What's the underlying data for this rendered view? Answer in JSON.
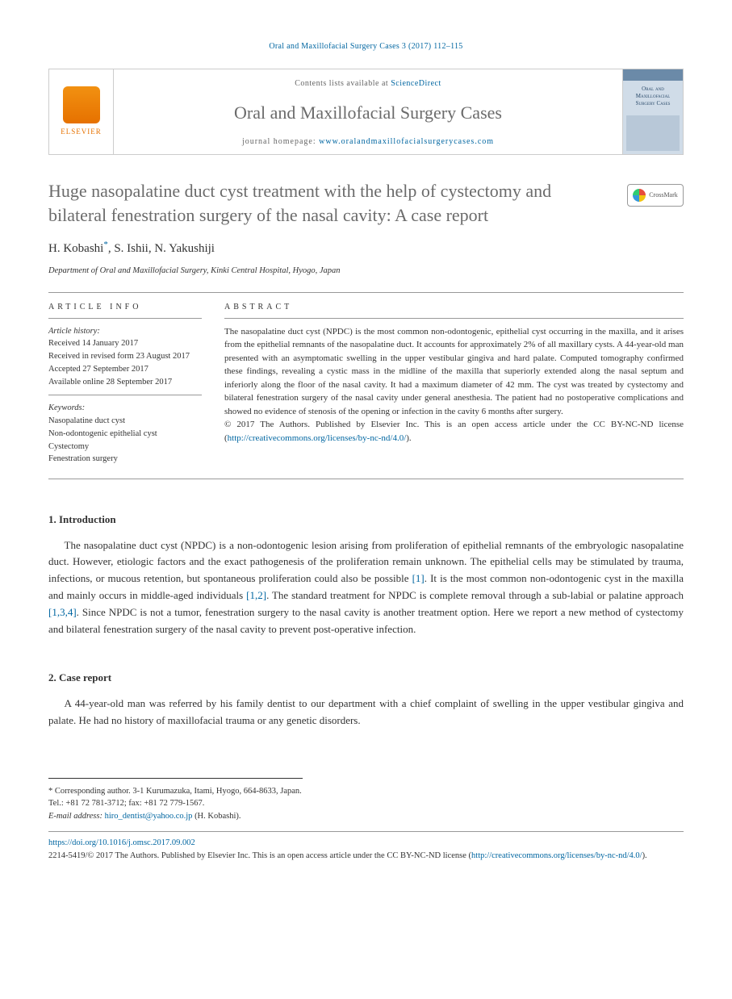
{
  "journal_ref": "Oral and Maxillofacial Surgery Cases 3 (2017) 112–115",
  "header": {
    "elsevier": "ELSEVIER",
    "contents_prefix": "Contents lists available at ",
    "contents_link": "ScienceDirect",
    "journal_title": "Oral and Maxillofacial Surgery Cases",
    "homepage_prefix": "journal homepage: ",
    "homepage_url": "www.oralandmaxillofacialsurgerycases.com",
    "cover_title": "Oral and Maxillofacial Surgery Cases"
  },
  "article": {
    "title": "Huge nasopalatine duct cyst treatment with the help of cystectomy and bilateral fenestration surgery of the nasal cavity: A case report",
    "crossmark": "CrossMark",
    "authors": "H. Kobashi",
    "authors_rest": ", S. Ishii, N. Yakushiji",
    "corr_marker": "*",
    "affiliation": "Department of Oral and Maxillofacial Surgery, Kinki Central Hospital, Hyogo, Japan"
  },
  "info": {
    "label": "ARTICLE INFO",
    "history_heading": "Article history:",
    "received": "Received 14 January 2017",
    "revised": "Received in revised form 23 August 2017",
    "accepted": "Accepted 27 September 2017",
    "online": "Available online 28 September 2017",
    "keywords_heading": "Keywords:",
    "kw1": "Nasopalatine duct cyst",
    "kw2": "Non-odontogenic epithelial cyst",
    "kw3": "Cystectomy",
    "kw4": "Fenestration surgery"
  },
  "abstract": {
    "label": "ABSTRACT",
    "text": "The nasopalatine duct cyst (NPDC) is the most common non-odontogenic, epithelial cyst occurring in the maxilla, and it arises from the epithelial remnants of the nasopalatine duct. It accounts for approximately 2% of all maxillary cysts. A 44-year-old man presented with an asymptomatic swelling in the upper vestibular gingiva and hard palate. Computed tomography confirmed these findings, revealing a cystic mass in the midline of the maxilla that superiorly extended along the nasal septum and inferiorly along the floor of the nasal cavity. It had a maximum diameter of 42 mm. The cyst was treated by cystectomy and bilateral fenestration surgery of the nasal cavity under general anesthesia. The patient had no postoperative complications and showed no evidence of stenosis of the opening or infection in the cavity 6 months after surgery.",
    "copyright": "© 2017 The Authors. Published by Elsevier Inc. This is an open access article under the CC BY-NC-ND license (",
    "license_url": "http://creativecommons.org/licenses/by-nc-nd/4.0/",
    "copyright_close": ")."
  },
  "sections": {
    "intro_heading": "1. Introduction",
    "intro_p1a": "The nasopalatine duct cyst (NPDC) is a non-odontogenic lesion arising from proliferation of epithelial remnants of the embryologic nasopalatine duct. However, etiologic factors and the exact pathogenesis of the proliferation remain unknown. The epithelial cells may be stimulated by trauma, infections, or mucous retention, but spontaneous proliferation could also be possible ",
    "ref1": "[1]",
    "intro_p1b": ". It is the most common non-odontogenic cyst in the maxilla and mainly occurs in middle-aged individuals ",
    "ref12": "[1,2]",
    "intro_p1c": ". The standard treatment for NPDC is complete removal through a sub-labial or palatine approach ",
    "ref134": "[1,3,4]",
    "intro_p1d": ". Since NPDC is not a tumor, fenestration surgery to the nasal cavity is another treatment option. Here we report a new method of cystectomy and bilateral fenestration surgery of the nasal cavity to prevent post-operative infection.",
    "case_heading": "2. Case report",
    "case_p1": "A 44-year-old man was referred by his family dentist to our department with a chief complaint of swelling in the upper vestibular gingiva and palate. He had no history of maxillofacial trauma or any genetic disorders."
  },
  "footnotes": {
    "corr": "* Corresponding author. 3-1 Kurumazuka, Itami, Hyogo, 664-8633, Japan. Tel.: +81 72 781-3712; fax: +81 72 779-1567.",
    "email_label": "E-mail address: ",
    "email": "hiro_dentist@yahoo.co.jp",
    "email_suffix": " (H. Kobashi)."
  },
  "footer": {
    "doi": "https://doi.org/10.1016/j.omsc.2017.09.002",
    "copyright_a": "2214-5419/© 2017 The Authors. Published by Elsevier Inc. This is an open access article under the CC BY-NC-ND license (",
    "license_url": "http://creativecommons.org/licenses/by-nc-nd/4.0/",
    "copyright_b": ")."
  }
}
